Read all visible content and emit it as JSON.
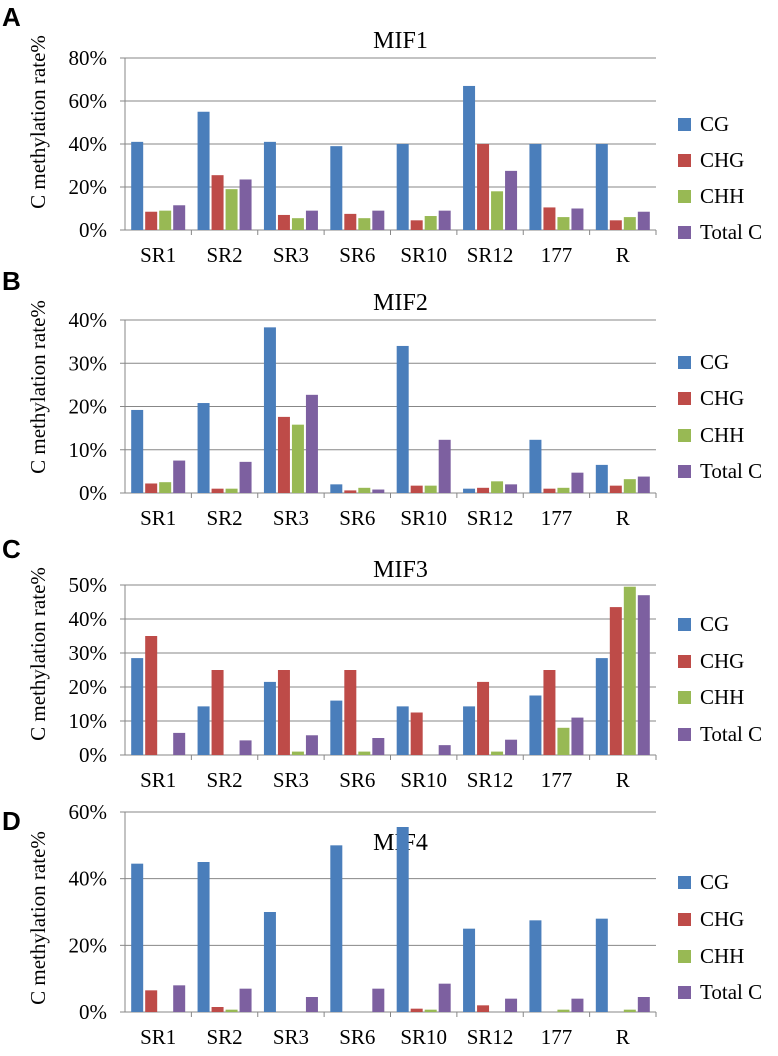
{
  "figure": {
    "ylabel": "C methylation rate%",
    "series_colors": {
      "CG": "#4a7ebb",
      "CHG": "#be4b48",
      "CHH": "#98b954",
      "Total C": "#7d60a0"
    }
  },
  "chart_data": [
    {
      "panel": "A",
      "type": "bar",
      "title": "MIF1",
      "ylabel": "C methylation rate%",
      "categories": [
        "SR1",
        "SR2",
        "SR3",
        "SR6",
        "SR10",
        "SR12",
        "177",
        "R"
      ],
      "ylim": [
        0,
        80
      ],
      "ytick_step": 20,
      "ytick_labels": [
        "0%",
        "20%",
        "40%",
        "60%",
        "80%"
      ],
      "series": [
        {
          "name": "CG",
          "color": "#4a7ebb",
          "values": [
            41,
            55,
            41,
            39,
            40,
            67,
            40,
            40
          ]
        },
        {
          "name": "CHG",
          "color": "#be4b48",
          "values": [
            8.5,
            25.5,
            7,
            7.5,
            4.5,
            40,
            10.5,
            4.5
          ]
        },
        {
          "name": "CHH",
          "color": "#98b954",
          "values": [
            9,
            19,
            5.5,
            5.5,
            6.5,
            18,
            6,
            6
          ]
        },
        {
          "name": "Total C",
          "color": "#7d60a0",
          "values": [
            11.5,
            23.5,
            9,
            9,
            9,
            27.5,
            10,
            8.5
          ]
        }
      ]
    },
    {
      "panel": "B",
      "type": "bar",
      "title": "MIF2",
      "ylabel": "C methylation rate%",
      "categories": [
        "SR1",
        "SR2",
        "SR3",
        "SR6",
        "SR10",
        "SR12",
        "177",
        "R"
      ],
      "ylim": [
        0,
        40
      ],
      "ytick_step": 10,
      "ytick_labels": [
        "0%",
        "10%",
        "20%",
        "30%",
        "40%"
      ],
      "series": [
        {
          "name": "CG",
          "color": "#4a7ebb",
          "values": [
            19.2,
            20.8,
            38.3,
            2,
            34,
            1,
            12.3,
            6.5
          ]
        },
        {
          "name": "CHG",
          "color": "#be4b48",
          "values": [
            2.2,
            1,
            17.6,
            0.6,
            1.7,
            1.2,
            1,
            1.7
          ]
        },
        {
          "name": "CHH",
          "color": "#98b954",
          "values": [
            2.5,
            1,
            15.8,
            1.2,
            1.7,
            2.7,
            1.2,
            3.2
          ]
        },
        {
          "name": "Total C",
          "color": "#7d60a0",
          "values": [
            7.5,
            7.2,
            22.7,
            0.8,
            12.3,
            2,
            4.7,
            3.8
          ]
        }
      ]
    },
    {
      "panel": "C",
      "type": "bar",
      "title": "MIF3",
      "ylabel": "C methylation rate%",
      "categories": [
        "SR1",
        "SR2",
        "SR3",
        "SR6",
        "SR10",
        "SR12",
        "177",
        "R"
      ],
      "ylim": [
        0,
        50
      ],
      "ytick_step": 10,
      "ytick_labels": [
        "0%",
        "10%",
        "20%",
        "30%",
        "40%",
        "50%"
      ],
      "series": [
        {
          "name": "CG",
          "color": "#4a7ebb",
          "values": [
            28.5,
            14.3,
            21.5,
            16,
            14.3,
            14.3,
            17.5,
            28.5
          ]
        },
        {
          "name": "CHG",
          "color": "#be4b48",
          "values": [
            35,
            25,
            25,
            25,
            12.5,
            21.5,
            25,
            43.5
          ]
        },
        {
          "name": "CHH",
          "color": "#98b954",
          "values": [
            0,
            0,
            1,
            1,
            0,
            1,
            8,
            49.5
          ]
        },
        {
          "name": "Total C",
          "color": "#7d60a0",
          "values": [
            6.5,
            4.3,
            5.8,
            5,
            2.9,
            4.5,
            11,
            47
          ]
        }
      ]
    },
    {
      "panel": "D",
      "type": "bar",
      "title": "MIF4",
      "ylabel": "C methylation rate%",
      "categories": [
        "SR1",
        "SR2",
        "SR3",
        "SR6",
        "SR10",
        "SR12",
        "177",
        "R"
      ],
      "ylim": [
        0,
        60
      ],
      "ytick_step": 20,
      "ytick_labels": [
        "0%",
        "20%",
        "40%",
        "60%"
      ],
      "series": [
        {
          "name": "CG",
          "color": "#4a7ebb",
          "values": [
            44.5,
            45,
            30,
            50,
            55.5,
            25,
            27.5,
            28
          ]
        },
        {
          "name": "CHG",
          "color": "#be4b48",
          "values": [
            6.5,
            1.5,
            0,
            0,
            1,
            2,
            0,
            0
          ]
        },
        {
          "name": "CHH",
          "color": "#98b954",
          "values": [
            0,
            0.7,
            0,
            0,
            0.7,
            0,
            0.7,
            0.7
          ]
        },
        {
          "name": "Total C",
          "color": "#7d60a0",
          "values": [
            8,
            7,
            4.5,
            7,
            8.5,
            4,
            4,
            4.5
          ]
        }
      ]
    }
  ]
}
